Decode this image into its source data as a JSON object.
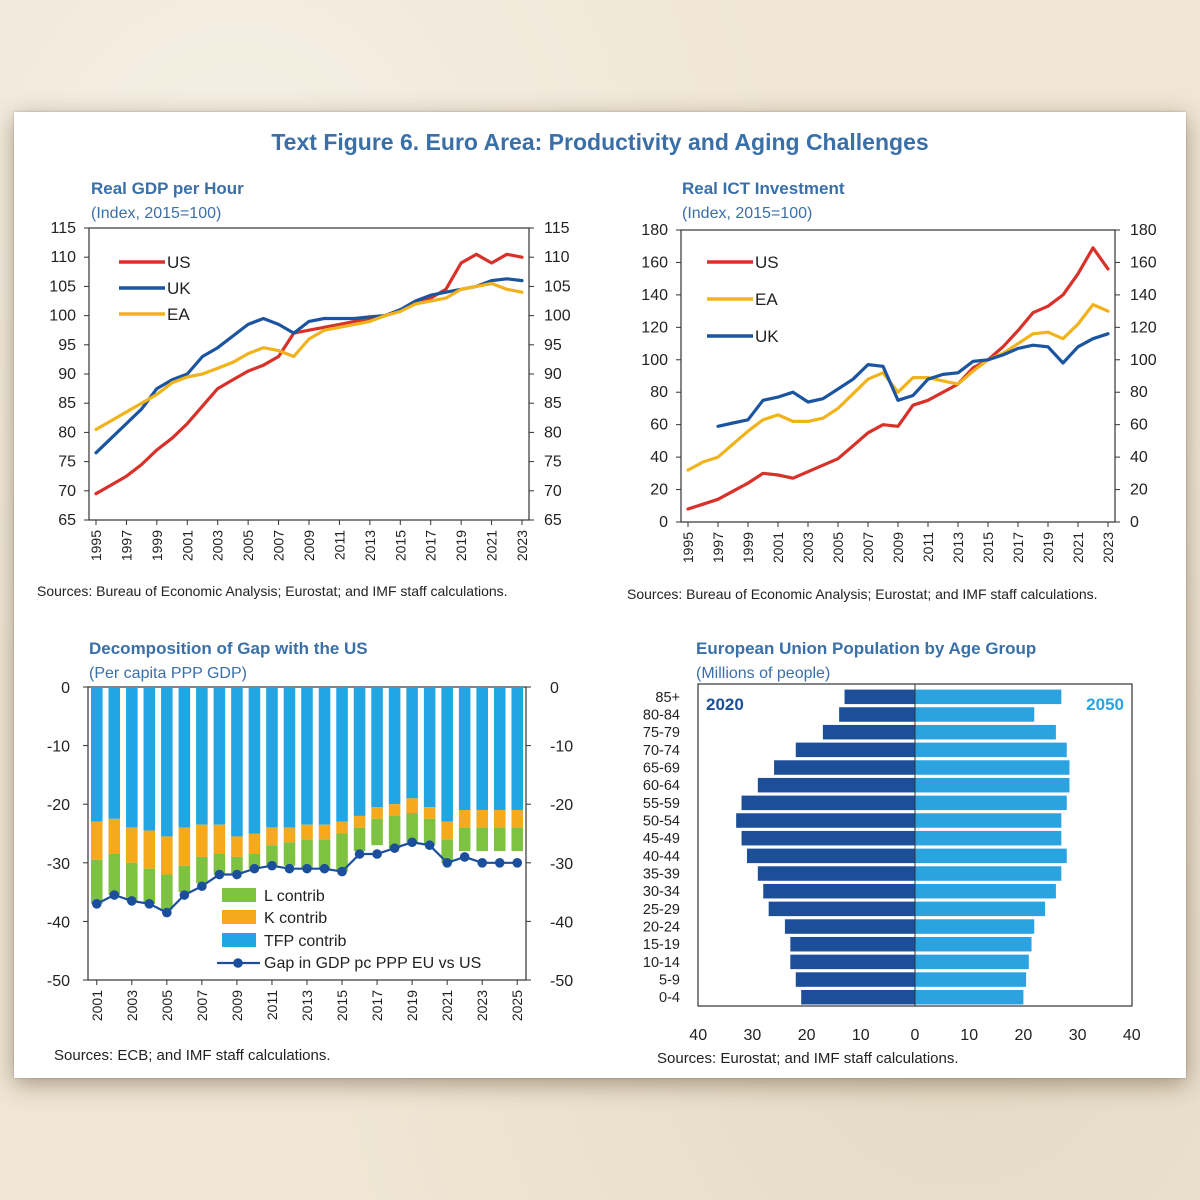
{
  "figure_title": "Text Figure 6. Euro Area: Productivity and Aging Challenges",
  "colors": {
    "title": "#3a6fa8",
    "us": "#d7312a",
    "uk": "#1b55a0",
    "ea": "#f1b31c",
    "l_contrib": "#7ec242",
    "k_contrib": "#f4aa1c",
    "tfp_contrib": "#22a5e3",
    "gap_line": "#1b4f9c",
    "pop_2020": "#1d4f99",
    "pop_2050": "#2aa3e0"
  },
  "chart_data": [
    {
      "type": "line",
      "title": "Real GDP per Hour",
      "subtitle": "(Index, 2015=100)",
      "x": [
        1995,
        1996,
        1997,
        1998,
        1999,
        2000,
        2001,
        2002,
        2003,
        2004,
        2005,
        2006,
        2007,
        2008,
        2009,
        2010,
        2011,
        2012,
        2013,
        2014,
        2015,
        2016,
        2017,
        2018,
        2019,
        2020,
        2021,
        2022,
        2023
      ],
      "x_tick_labels": [
        "1995",
        "1997",
        "1999",
        "2001",
        "2003",
        "2005",
        "2007",
        "2009",
        "2011",
        "2013",
        "2015",
        "2017",
        "2019",
        "2021",
        "2023"
      ],
      "ylim": [
        65,
        115
      ],
      "y_ticks": [
        65,
        70,
        75,
        80,
        85,
        90,
        95,
        100,
        105,
        110,
        115
      ],
      "series": [
        {
          "name": "US",
          "color": "#d7312a",
          "values": [
            69.5,
            71,
            72.5,
            74.5,
            77,
            79,
            81.5,
            84.5,
            87.5,
            89,
            90.5,
            91.5,
            93,
            97,
            97.5,
            98,
            98.5,
            99,
            99.5,
            100,
            101,
            102,
            103,
            104.5,
            109,
            110.5,
            109,
            110.5,
            110
          ]
        },
        {
          "name": "UK",
          "color": "#1b55a0",
          "values": [
            76.5,
            79,
            81.5,
            84,
            87.5,
            89,
            90,
            93,
            94.5,
            96.5,
            98.5,
            99.5,
            98.5,
            97,
            99,
            99.5,
            99.5,
            99.5,
            99.8,
            100,
            101,
            102.5,
            103.5,
            104,
            104.5,
            105,
            106,
            106.3,
            106
          ]
        },
        {
          "name": "EA",
          "color": "#f1b31c",
          "values": [
            80.5,
            82,
            83.5,
            85,
            86.5,
            88.5,
            89.5,
            90,
            91,
            92,
            93.5,
            94.5,
            94,
            93,
            96,
            97.5,
            98,
            98.5,
            99,
            100,
            100.7,
            102,
            102.5,
            103,
            104.5,
            105,
            105.5,
            104.5,
            104
          ]
        }
      ],
      "legend": [
        "US",
        "UK",
        "EA"
      ],
      "source": "Sources: Bureau of Economic Analysis; Eurostat; and IMF staff calculations."
    },
    {
      "type": "line",
      "title": "Real ICT Investment",
      "subtitle": "(Index, 2015=100)",
      "x": [
        1995,
        1996,
        1997,
        1998,
        1999,
        2000,
        2001,
        2002,
        2003,
        2004,
        2005,
        2006,
        2007,
        2008,
        2009,
        2010,
        2011,
        2012,
        2013,
        2014,
        2015,
        2016,
        2017,
        2018,
        2019,
        2020,
        2021,
        2022,
        2023
      ],
      "x_tick_labels": [
        "1995",
        "1997",
        "1999",
        "2001",
        "2003",
        "2005",
        "2007",
        "2009",
        "2011",
        "2013",
        "2015",
        "2017",
        "2019",
        "2021",
        "2023"
      ],
      "ylim": [
        0,
        180
      ],
      "y_ticks": [
        0,
        20,
        40,
        60,
        80,
        100,
        120,
        140,
        160,
        180
      ],
      "series": [
        {
          "name": "US",
          "color": "#d7312a",
          "values": [
            8,
            11,
            14,
            19,
            24,
            30,
            29,
            27,
            31,
            35,
            39,
            47,
            55,
            60,
            59,
            72,
            75,
            80,
            85,
            95,
            100,
            108,
            118,
            129,
            133,
            140,
            153,
            169,
            156
          ]
        },
        {
          "name": "EA",
          "color": "#f1b31c",
          "values": [
            32,
            37,
            40,
            48,
            56,
            63,
            66,
            62,
            62,
            64,
            70,
            79,
            88,
            92,
            80,
            89,
            89,
            87,
            85,
            93,
            100,
            104,
            110,
            116,
            117,
            113,
            122,
            134,
            130
          ]
        },
        {
          "name": "UK",
          "color": "#1b55a0",
          "values": [
            null,
            null,
            59,
            61,
            63,
            75,
            77,
            80,
            74,
            76,
            82,
            88,
            97,
            96,
            75,
            78,
            88,
            91,
            92,
            99,
            100,
            103,
            107,
            109,
            108,
            98,
            108,
            113,
            116
          ]
        }
      ],
      "legend": [
        "US",
        "EA",
        "UK"
      ],
      "source": "Sources: Bureau of Economic Analysis; Eurostat; and IMF staff calculations."
    },
    {
      "type": "bar",
      "stacked": true,
      "title": "Decomposition of Gap with the US",
      "subtitle": "(Per capita PPP GDP)",
      "categories": [
        2001,
        2002,
        2003,
        2004,
        2005,
        2006,
        2007,
        2008,
        2009,
        2010,
        2011,
        2012,
        2013,
        2014,
        2015,
        2016,
        2017,
        2018,
        2019,
        2020,
        2021,
        2022,
        2023,
        2024,
        2025
      ],
      "x_tick_labels": [
        "2001",
        "2003",
        "2005",
        "2007",
        "2009",
        "2011",
        "2013",
        "2015",
        "2017",
        "2019",
        "2021",
        "2023",
        "2025"
      ],
      "ylim": [
        -50,
        0
      ],
      "y_ticks": [
        0,
        -10,
        -20,
        -30,
        -40,
        -50
      ],
      "series": [
        {
          "name": "TFP contrib",
          "color": "#22a5e3",
          "values": [
            -23,
            -22.5,
            -24,
            -24.5,
            -25.5,
            -24,
            -23.5,
            -23.5,
            -25.5,
            -25,
            -24,
            -24,
            -23.5,
            -23.5,
            -23,
            -22,
            -20.5,
            -20,
            -19,
            -20.5,
            -23,
            -21,
            -21,
            -21,
            -21
          ]
        },
        {
          "name": "K contrib",
          "color": "#f4aa1c",
          "values": [
            -6.5,
            -6,
            -6,
            -6.5,
            -6.5,
            -6.5,
            -5.5,
            -5,
            -3.5,
            -3.5,
            -3,
            -2.5,
            -2.5,
            -2.5,
            -2,
            -2,
            -2,
            -2,
            -2.5,
            -2,
            -3,
            -3,
            -3,
            -3,
            -3
          ]
        },
        {
          "name": "L contrib",
          "color": "#7ec242",
          "values": [
            -7.5,
            -7,
            -6.5,
            -6,
            -6,
            -4.5,
            -4.5,
            -3.5,
            -3,
            -2.5,
            -3.5,
            -4,
            -5,
            -5,
            -6.5,
            -4,
            -4.5,
            -5.5,
            -5,
            -4.5,
            -4,
            -4,
            -4,
            -4,
            -4
          ]
        }
      ],
      "line": {
        "name": "Gap in GDP pc PPP EU vs US",
        "color": "#1b4f9c",
        "values": [
          -37,
          -35.5,
          -36.5,
          -37,
          -38.5,
          -35.5,
          -34,
          -32,
          -32,
          -31,
          -30.5,
          -31,
          -31,
          -31,
          -31.5,
          -28.5,
          -28.5,
          -27.5,
          -26.5,
          -27,
          -30,
          -29,
          -30,
          -30,
          -30
        ]
      },
      "legend": [
        "L contrib",
        "K contrib",
        "TFP contrib",
        "Gap in GDP pc PPP EU vs US"
      ],
      "source": "Sources: ECB; and IMF staff calculations."
    },
    {
      "type": "bar",
      "orientation": "horizontal",
      "title": "European Union Population by Age Group",
      "subtitle": "(Millions of people)",
      "categories": [
        "85+",
        "80-84",
        "75-79",
        "70-74",
        "65-69",
        "60-64",
        "55-59",
        "50-54",
        "45-49",
        "40-44",
        "35-39",
        "30-34",
        "25-29",
        "20-24",
        "15-19",
        "10-14",
        "5-9",
        "0-4"
      ],
      "xlim": [
        -40,
        40
      ],
      "x_tick_labels": [
        "40",
        "30",
        "20",
        "10",
        "0",
        "10",
        "20",
        "30",
        "40"
      ],
      "series": [
        {
          "name": "2020",
          "color": "#1d4f99",
          "values": [
            13,
            14,
            17,
            22,
            26,
            29,
            32,
            33,
            32,
            31,
            29,
            28,
            27,
            24,
            23,
            23,
            22,
            21
          ]
        },
        {
          "name": "2050",
          "color": "#2aa3e0",
          "values": [
            27,
            22,
            26,
            28,
            28.5,
            28.5,
            28,
            27,
            27,
            28,
            27,
            26,
            24,
            22,
            21.5,
            21,
            20.5,
            20
          ]
        }
      ],
      "source": "Sources: Eurostat; and IMF staff calculations."
    }
  ]
}
